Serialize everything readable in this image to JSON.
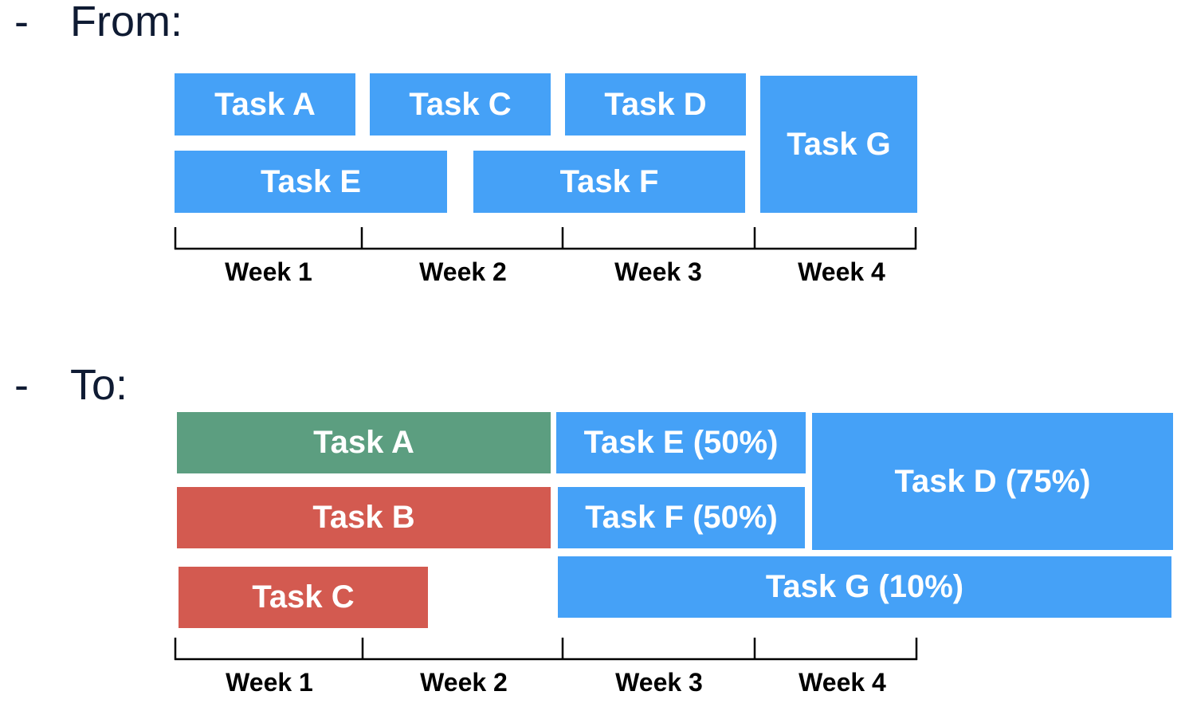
{
  "colors": {
    "blue": "#45a1f7",
    "green": "#5c9e80",
    "red": "#d35a50",
    "heading_text": "#0f1b33",
    "axis": "#000000"
  },
  "headings": {
    "bullet": "-",
    "from": "From:",
    "to": "To:"
  },
  "from_schedule": {
    "tasks": [
      {
        "label": "Task A",
        "color": "blue"
      },
      {
        "label": "Task C",
        "color": "blue"
      },
      {
        "label": "Task D",
        "color": "blue"
      },
      {
        "label": "Task G",
        "color": "blue"
      },
      {
        "label": "Task E",
        "color": "blue"
      },
      {
        "label": "Task F",
        "color": "blue"
      }
    ],
    "weeks": [
      "Week 1",
      "Week 2",
      "Week 3",
      "Week 4"
    ]
  },
  "to_schedule": {
    "tasks": [
      {
        "label": "Task A",
        "color": "green"
      },
      {
        "label": "Task B",
        "color": "red"
      },
      {
        "label": "Task C",
        "color": "red"
      },
      {
        "label": "Task E (50%)",
        "color": "blue"
      },
      {
        "label": "Task F (50%)",
        "color": "blue"
      },
      {
        "label": "Task D (75%)",
        "color": "blue"
      },
      {
        "label": "Task G (10%)",
        "color": "blue"
      }
    ],
    "weeks": [
      "Week 1",
      "Week 2",
      "Week 3",
      "Week 4"
    ]
  }
}
